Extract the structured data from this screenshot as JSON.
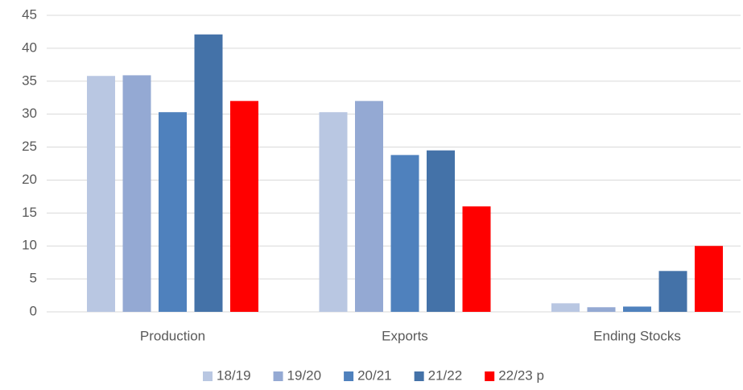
{
  "chart_data": {
    "type": "bar",
    "categories": [
      "Production",
      "Exports",
      "Ending Stocks"
    ],
    "series": [
      {
        "name": "18/19",
        "color": "#b9c7e2",
        "values": [
          35.8,
          30.3,
          1.3
        ]
      },
      {
        "name": "19/20",
        "color": "#94a9d3",
        "values": [
          35.9,
          32.0,
          0.7
        ]
      },
      {
        "name": "20/21",
        "color": "#4f81bd",
        "values": [
          30.3,
          23.8,
          0.8
        ]
      },
      {
        "name": "21/22",
        "color": "#4472a8",
        "values": [
          42.1,
          24.5,
          6.2
        ]
      },
      {
        "name": "22/23 p",
        "color": "#ff0000",
        "values": [
          32.0,
          16.0,
          10.0
        ]
      }
    ],
    "ylim": [
      0,
      45
    ],
    "yticks": [
      0,
      5,
      10,
      15,
      20,
      25,
      30,
      35,
      40,
      45
    ],
    "grid": true,
    "legend": "bottom"
  }
}
